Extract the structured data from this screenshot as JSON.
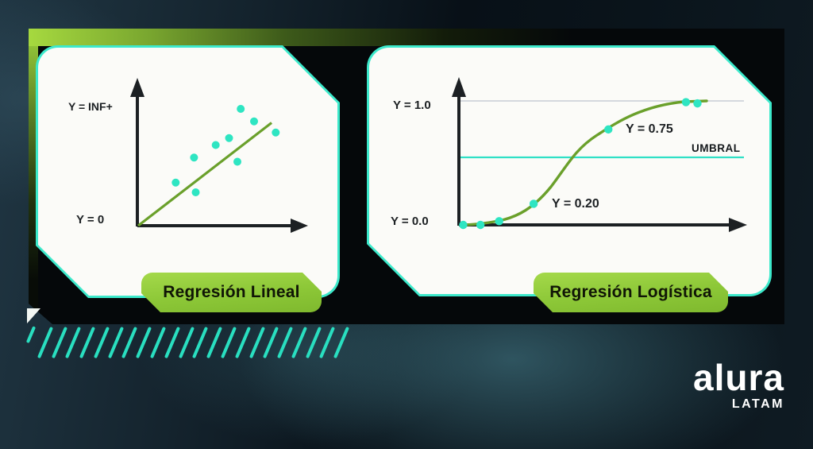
{
  "linear_panel": {
    "badge": "Regresión Lineal",
    "label_y_top": "Y = INF+",
    "label_y_bottom": "Y = 0"
  },
  "logistic_panel": {
    "badge": "Regresión Logística",
    "label_y_top": "Y = 1.0",
    "label_y_bottom": "Y = 0.0",
    "label_p075": "Y = 0.75",
    "label_p020": "Y = 0.20",
    "threshold_label": "UMBRAL"
  },
  "logo": {
    "brand": "alura",
    "region": "LATAM"
  },
  "colors": {
    "accent_teal": "#2fe5c5",
    "dot_teal": "#2ee5c2",
    "curve_green": "#6aa02b",
    "badge_green": "#8cc737",
    "panel_border_teal": "#3ce9cb",
    "threshold_line": "#2fe0c6",
    "reference_line_gray": "#c8cdd5",
    "axis_black": "#1c2023",
    "backdrop_green": "#a6d93f"
  },
  "chart_data": [
    {
      "type": "scatter",
      "title": "Regresión Lineal",
      "xlabel": "",
      "ylabel": "",
      "annotations": [
        "Y = INF+",
        "Y = 0"
      ],
      "ylim": [
        0,
        1
      ],
      "points": [
        {
          "x": 6.2,
          "y": 0.84
        },
        {
          "x": 7.0,
          "y": 0.75
        },
        {
          "x": 8.3,
          "y": 0.67
        },
        {
          "x": 5.5,
          "y": 0.63
        },
        {
          "x": 4.7,
          "y": 0.58
        },
        {
          "x": 3.4,
          "y": 0.49
        },
        {
          "x": 6.0,
          "y": 0.46
        },
        {
          "x": 2.3,
          "y": 0.31
        },
        {
          "x": 3.5,
          "y": 0.24
        }
      ],
      "trend_line": {
        "x1": 0.05,
        "y1": 0.0,
        "x2": 8.05,
        "y2": 0.74
      }
    },
    {
      "type": "line",
      "title": "Regresión Logística",
      "xlabel": "",
      "ylabel": "",
      "ylim": [
        0,
        1
      ],
      "curve": "sigmoid",
      "points": [
        {
          "x": 0.15,
          "y": 0.0
        },
        {
          "x": 0.75,
          "y": 0.0
        },
        {
          "x": 1.4,
          "y": 0.03
        },
        {
          "x": 2.6,
          "y": 0.17
        },
        {
          "x": 5.2,
          "y": 0.77
        },
        {
          "x": 7.9,
          "y": 0.99
        },
        {
          "x": 8.3,
          "y": 0.98
        }
      ],
      "labeled_points": [
        {
          "label": "Y = 0.20",
          "x": 2.6,
          "y": 0.2
        },
        {
          "label": "Y = 0.75",
          "x": 5.2,
          "y": 0.75
        }
      ],
      "reference_lines": [
        {
          "y": 1.0,
          "label": "Y = 1.0"
        },
        {
          "y": 0.5,
          "label": "UMBRAL"
        },
        {
          "y": 0.0,
          "label": "Y = 0.0"
        }
      ]
    }
  ]
}
